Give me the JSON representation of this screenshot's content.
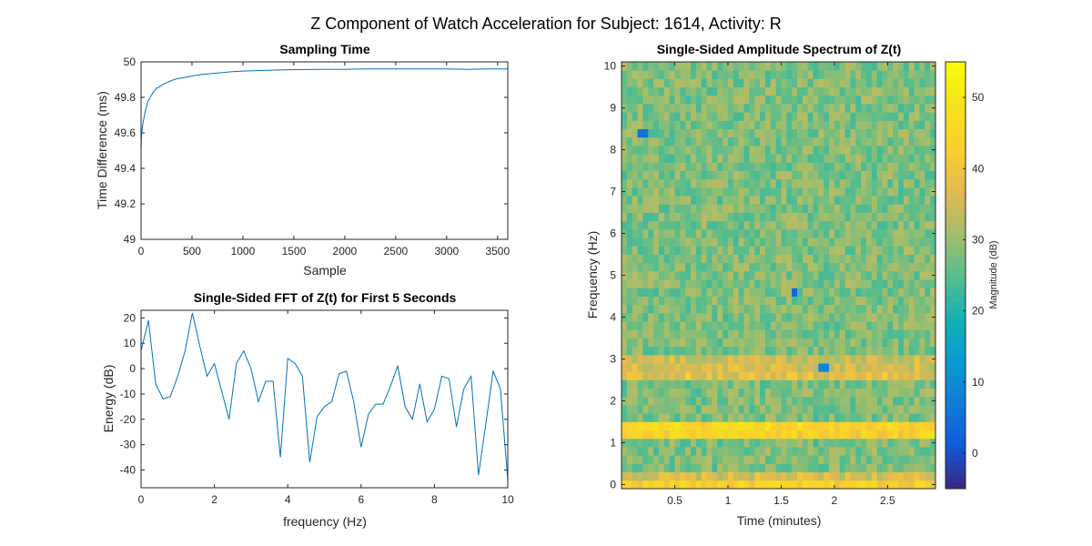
{
  "figure": {
    "suptitle": "Z Component of Watch Acceleration for Subject: 1614, Activity: R"
  },
  "chart_data": [
    {
      "id": "sampling-time",
      "type": "line",
      "title": "Sampling Time",
      "xlabel": "Sample",
      "ylabel": "Time Difference (ms)",
      "xlim": [
        0,
        3600
      ],
      "ylim": [
        49,
        50
      ],
      "xticks": [
        0,
        500,
        1000,
        1500,
        2000,
        2500,
        3000,
        3500
      ],
      "yticks": [
        49,
        49.2,
        49.4,
        49.6,
        49.8,
        50
      ],
      "ytick_labels": [
        "49",
        "49.2",
        "49.4",
        "49.6",
        "49.8",
        "50"
      ],
      "color": "#0072BD",
      "series": [
        {
          "x": [
            0,
            3,
            6,
            10,
            15,
            20,
            30,
            40,
            50,
            60,
            70,
            80,
            100,
            120,
            150,
            180,
            220,
            260,
            300,
            350,
            400,
            450,
            500,
            550,
            600,
            700,
            800,
            900,
            1000,
            1100,
            1200,
            1400,
            1600,
            1800,
            2000,
            2200,
            2400,
            2600,
            2800,
            3000,
            3200,
            3400,
            3600
          ],
          "values": [
            49.5,
            49.56,
            49.6,
            49.62,
            49.64,
            49.66,
            49.69,
            49.72,
            49.74,
            49.76,
            49.78,
            49.79,
            49.81,
            49.83,
            49.85,
            49.86,
            49.875,
            49.885,
            49.895,
            49.905,
            49.91,
            49.915,
            49.92,
            49.925,
            49.93,
            49.935,
            49.94,
            49.945,
            49.948,
            49.95,
            49.952,
            49.955,
            49.957,
            49.958,
            49.958,
            49.96,
            49.96,
            49.96,
            49.96,
            49.96,
            49.958,
            49.96,
            49.96
          ]
        }
      ]
    },
    {
      "id": "fft-first-5s",
      "type": "line",
      "title": "Single-Sided FFT of Z(t) for First 5 Seconds",
      "xlabel": "frequency (Hz)",
      "ylabel": "Energy (dB)",
      "xlim": [
        0,
        10
      ],
      "ylim": [
        -47,
        23
      ],
      "xticks": [
        0,
        2,
        4,
        6,
        8,
        10
      ],
      "yticks": [
        -40,
        -30,
        -20,
        -10,
        0,
        10,
        20
      ],
      "color": "#0072BD",
      "series": [
        {
          "x": [
            0,
            0.2,
            0.4,
            0.6,
            0.8,
            1.0,
            1.2,
            1.4,
            1.6,
            1.8,
            2.0,
            2.2,
            2.4,
            2.6,
            2.8,
            3.0,
            3.2,
            3.4,
            3.6,
            3.8,
            4.0,
            4.2,
            4.4,
            4.6,
            4.8,
            5.0,
            5.2,
            5.4,
            5.6,
            5.8,
            6.0,
            6.2,
            6.4,
            6.6,
            6.8,
            7.0,
            7.2,
            7.4,
            7.6,
            7.8,
            8.0,
            8.2,
            8.4,
            8.6,
            8.8,
            9.0,
            9.2,
            9.4,
            9.6,
            9.8,
            10.0
          ],
          "values": [
            7,
            19,
            -6,
            -12,
            -11,
            -3,
            7,
            22,
            9,
            -3,
            2,
            -9,
            -20,
            2,
            7,
            0,
            -13,
            -5,
            -5,
            -35,
            4,
            2,
            -3,
            -37,
            -19,
            -15,
            -13,
            -2,
            -1,
            -13,
            -31,
            -18,
            -14,
            -14,
            -7,
            1,
            -15,
            -20,
            -6,
            -21,
            -16,
            -3,
            -4,
            -23,
            -8,
            -3,
            -42,
            -22,
            -1,
            -8,
            -44
          ]
        }
      ]
    },
    {
      "id": "spectrogram",
      "type": "heatmap",
      "title": "Single-Sided Amplitude Spectrum of Z(t)",
      "xlabel": "Time (minutes)",
      "ylabel": "Frequency (Hz)",
      "xlim": [
        0,
        2.95
      ],
      "ylim": [
        -0.1,
        10.1
      ],
      "xticks": [
        0.5,
        1,
        1.5,
        2,
        2.5
      ],
      "xtick_labels": [
        "0.5",
        "1",
        "1.5",
        "2",
        "2.5"
      ],
      "yticks": [
        0,
        1,
        2,
        3,
        4,
        5,
        6,
        7,
        8,
        9,
        10
      ],
      "colorbar": {
        "label": "Magnitude (dB)",
        "range": [
          -5,
          55
        ],
        "ticks": [
          0,
          10,
          20,
          30,
          40,
          50
        ],
        "colormap": "parula"
      },
      "grid": {
        "time_bins": 59,
        "freq_bins": 51,
        "freq_step_hz": 0.2,
        "base_level_db": 28,
        "variation_db": 5,
        "bands": [
          {
            "freq_hz": 0.0,
            "level_db": 44
          },
          {
            "freq_hz": 0.2,
            "level_db": 36
          },
          {
            "freq_hz": 1.2,
            "level_db": 44
          },
          {
            "freq_hz": 1.4,
            "level_db": 46
          },
          {
            "freq_hz": 2.6,
            "level_db": 38
          },
          {
            "freq_hz": 2.8,
            "level_db": 36
          },
          {
            "freq_hz": 3.0,
            "level_db": 35
          }
        ],
        "low_cells": [
          {
            "time_min": 0.2,
            "freq_hz": 8.4,
            "level_db": 5
          },
          {
            "time_min": 1.62,
            "freq_hz": 4.6,
            "level_db": 2
          },
          {
            "time_min": 1.9,
            "freq_hz": 2.8,
            "level_db": 8
          }
        ]
      }
    }
  ]
}
